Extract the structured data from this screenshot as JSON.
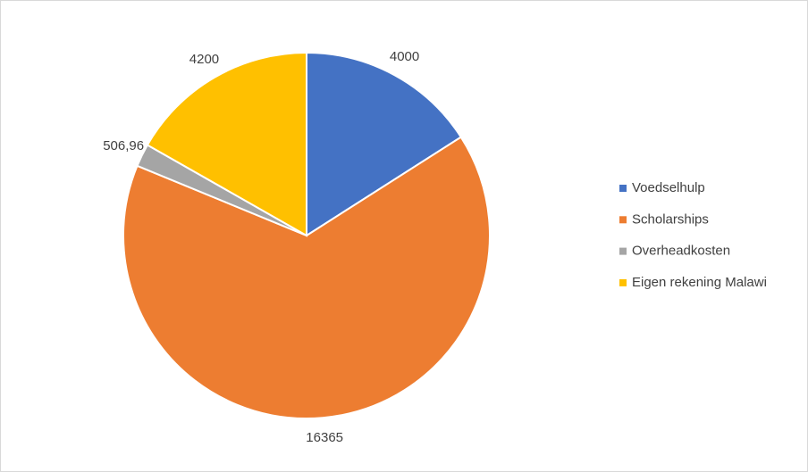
{
  "chart_data": {
    "type": "pie",
    "categories": [
      "Voedselhulp",
      "Scholarships",
      "Overheadkosten",
      "Eigen rekening Malawi"
    ],
    "values": [
      4000,
      16365,
      506.96,
      4200
    ],
    "value_labels": [
      "4000",
      "16365",
      "506,96",
      "4200"
    ],
    "colors": [
      "#4472c4",
      "#ed7d31",
      "#a5a5a5",
      "#ffc000"
    ],
    "legend": "right"
  }
}
